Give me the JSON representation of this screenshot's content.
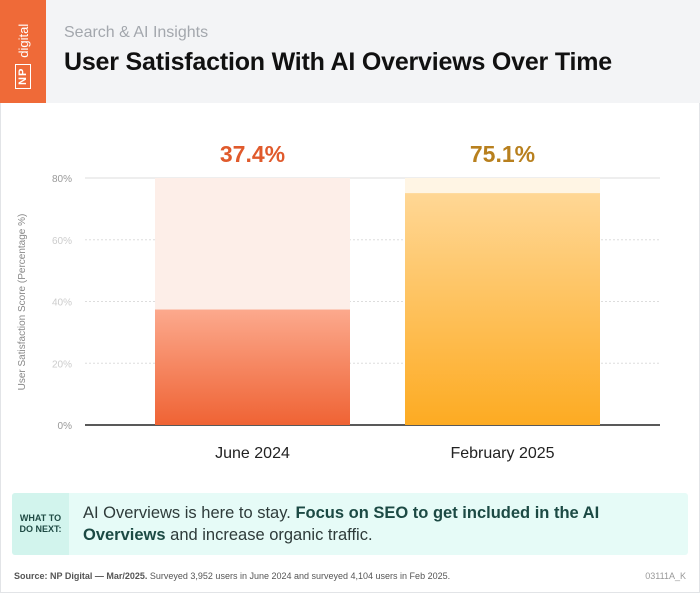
{
  "header": {
    "logo_text": "NP digital",
    "subtitle": "Search & AI Insights",
    "title": "User Satisfaction With AI Overviews Over Time"
  },
  "chart_data": {
    "type": "bar",
    "title": "User Satisfaction With AI Overviews Over Time",
    "ylabel": "User Satisfaction Score (Percentage %)",
    "xlabel": "",
    "categories": [
      "June 2024",
      "February 2025"
    ],
    "values": [
      37.4,
      75.1
    ],
    "data_labels": [
      "37.4%",
      "75.1%"
    ],
    "ylim": [
      0,
      80
    ],
    "yticks": [
      "0%",
      "20%",
      "40%",
      "60%",
      "80%"
    ],
    "grid": true,
    "colors": {
      "bar1_top": "#fca98d",
      "bar1_bottom": "#ef6334",
      "bar1_bg": "#fdeee8",
      "bar1_label": "#e05a2c",
      "bar2_top": "#ffd795",
      "bar2_bottom": "#fdab22",
      "bar2_bg": "#fff5e4",
      "bar2_label": "#b8801e"
    }
  },
  "callout": {
    "label": "WHAT TO DO NEXT:",
    "text_plain": "AI Overviews is here to stay. ",
    "text_bold": "Focus on SEO to get included in the AI Overviews",
    "text_end": " and increase organic traffic."
  },
  "footer": {
    "source_bold": "Source: NP Digital — Mar/2025.",
    "source_text": " Surveyed 3,952 users in June 2024 and surveyed 4,104 users in Feb 2025.",
    "code": "03111A_K"
  }
}
